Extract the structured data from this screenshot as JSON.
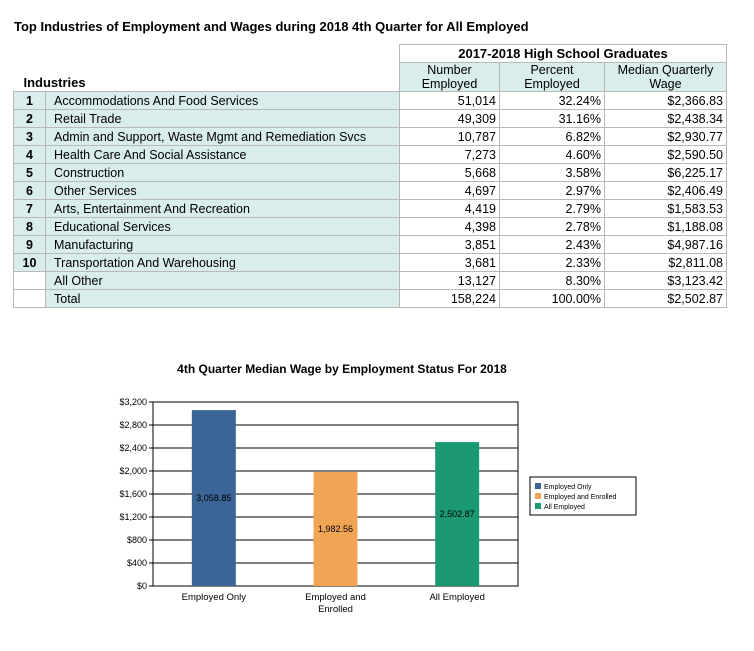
{
  "page": {
    "title": "Top Industries of Employment and Wages during 2018 4th Quarter for All Employed"
  },
  "table": {
    "group_header": "2017-2018 High School Graduates",
    "industries_label": "Industries",
    "columns": {
      "number_line1": "Number",
      "number_line2": "Employed",
      "percent_line1": "Percent",
      "percent_line2": "Employed",
      "wage_line1": "Median Quarterly",
      "wage_line2": "Wage"
    },
    "rows": [
      {
        "rank": "1",
        "industry": "Accommodations And Food Services",
        "number": "51,014",
        "percent": "32.24%",
        "wage": "$2,366.83"
      },
      {
        "rank": "2",
        "industry": "Retail Trade",
        "number": "49,309",
        "percent": "31.16%",
        "wage": "$2,438.34"
      },
      {
        "rank": "3",
        "industry": "Admin and Support, Waste Mgmt and Remediation Svcs",
        "number": "10,787",
        "percent": "6.82%",
        "wage": "$2,930.77"
      },
      {
        "rank": "4",
        "industry": "Health Care And Social Assistance",
        "number": "7,273",
        "percent": "4.60%",
        "wage": "$2,590.50"
      },
      {
        "rank": "5",
        "industry": "Construction",
        "number": "5,668",
        "percent": "3.58%",
        "wage": "$6,225.17"
      },
      {
        "rank": "6",
        "industry": "Other Services",
        "number": "4,697",
        "percent": "2.97%",
        "wage": "$2,406.49"
      },
      {
        "rank": "7",
        "industry": "Arts, Entertainment And Recreation",
        "number": "4,419",
        "percent": "2.79%",
        "wage": "$1,583.53"
      },
      {
        "rank": "8",
        "industry": "Educational Services",
        "number": "4,398",
        "percent": "2.78%",
        "wage": "$1,188.08"
      },
      {
        "rank": "9",
        "industry": "Manufacturing",
        "number": "3,851",
        "percent": "2.43%",
        "wage": "$4,987.16"
      },
      {
        "rank": "10",
        "industry": "Transportation And Warehousing",
        "number": "3,681",
        "percent": "2.33%",
        "wage": "$2,811.08"
      },
      {
        "rank": "",
        "industry": "All Other",
        "number": "13,127",
        "percent": "8.30%",
        "wage": "$3,123.42"
      },
      {
        "rank": "",
        "industry": "Total",
        "number": "158,224",
        "percent": "100.00%",
        "wage": "$2,502.87"
      }
    ]
  },
  "chart_data": {
    "type": "bar",
    "title": "4th Quarter Median Wage by Employment Status  For 2018",
    "categories": [
      "Employed Only",
      "Employed and Enrolled",
      "All Employed"
    ],
    "category_label_lines": [
      [
        "Employed Only"
      ],
      [
        "Employed and",
        "Enrolled"
      ],
      [
        "All Employed"
      ]
    ],
    "values": [
      3058.85,
      1982.56,
      2502.87
    ],
    "value_labels": [
      "3,058.85",
      "1,982.56",
      "2,502.87"
    ],
    "colors": [
      "#3b6497",
      "#f0a555",
      "#1a9973"
    ],
    "yticks": [
      "$0",
      "$400",
      "$800",
      "$1,200",
      "$1,600",
      "$2,000",
      "$2,400",
      "$2,800",
      "$3,200"
    ],
    "ylim": [
      0,
      3200
    ],
    "ytick_step": 400,
    "grid": true,
    "legend": [
      "Employed Only",
      "Employed and Enrolled",
      "All Employed"
    ],
    "legend_position": "right"
  }
}
